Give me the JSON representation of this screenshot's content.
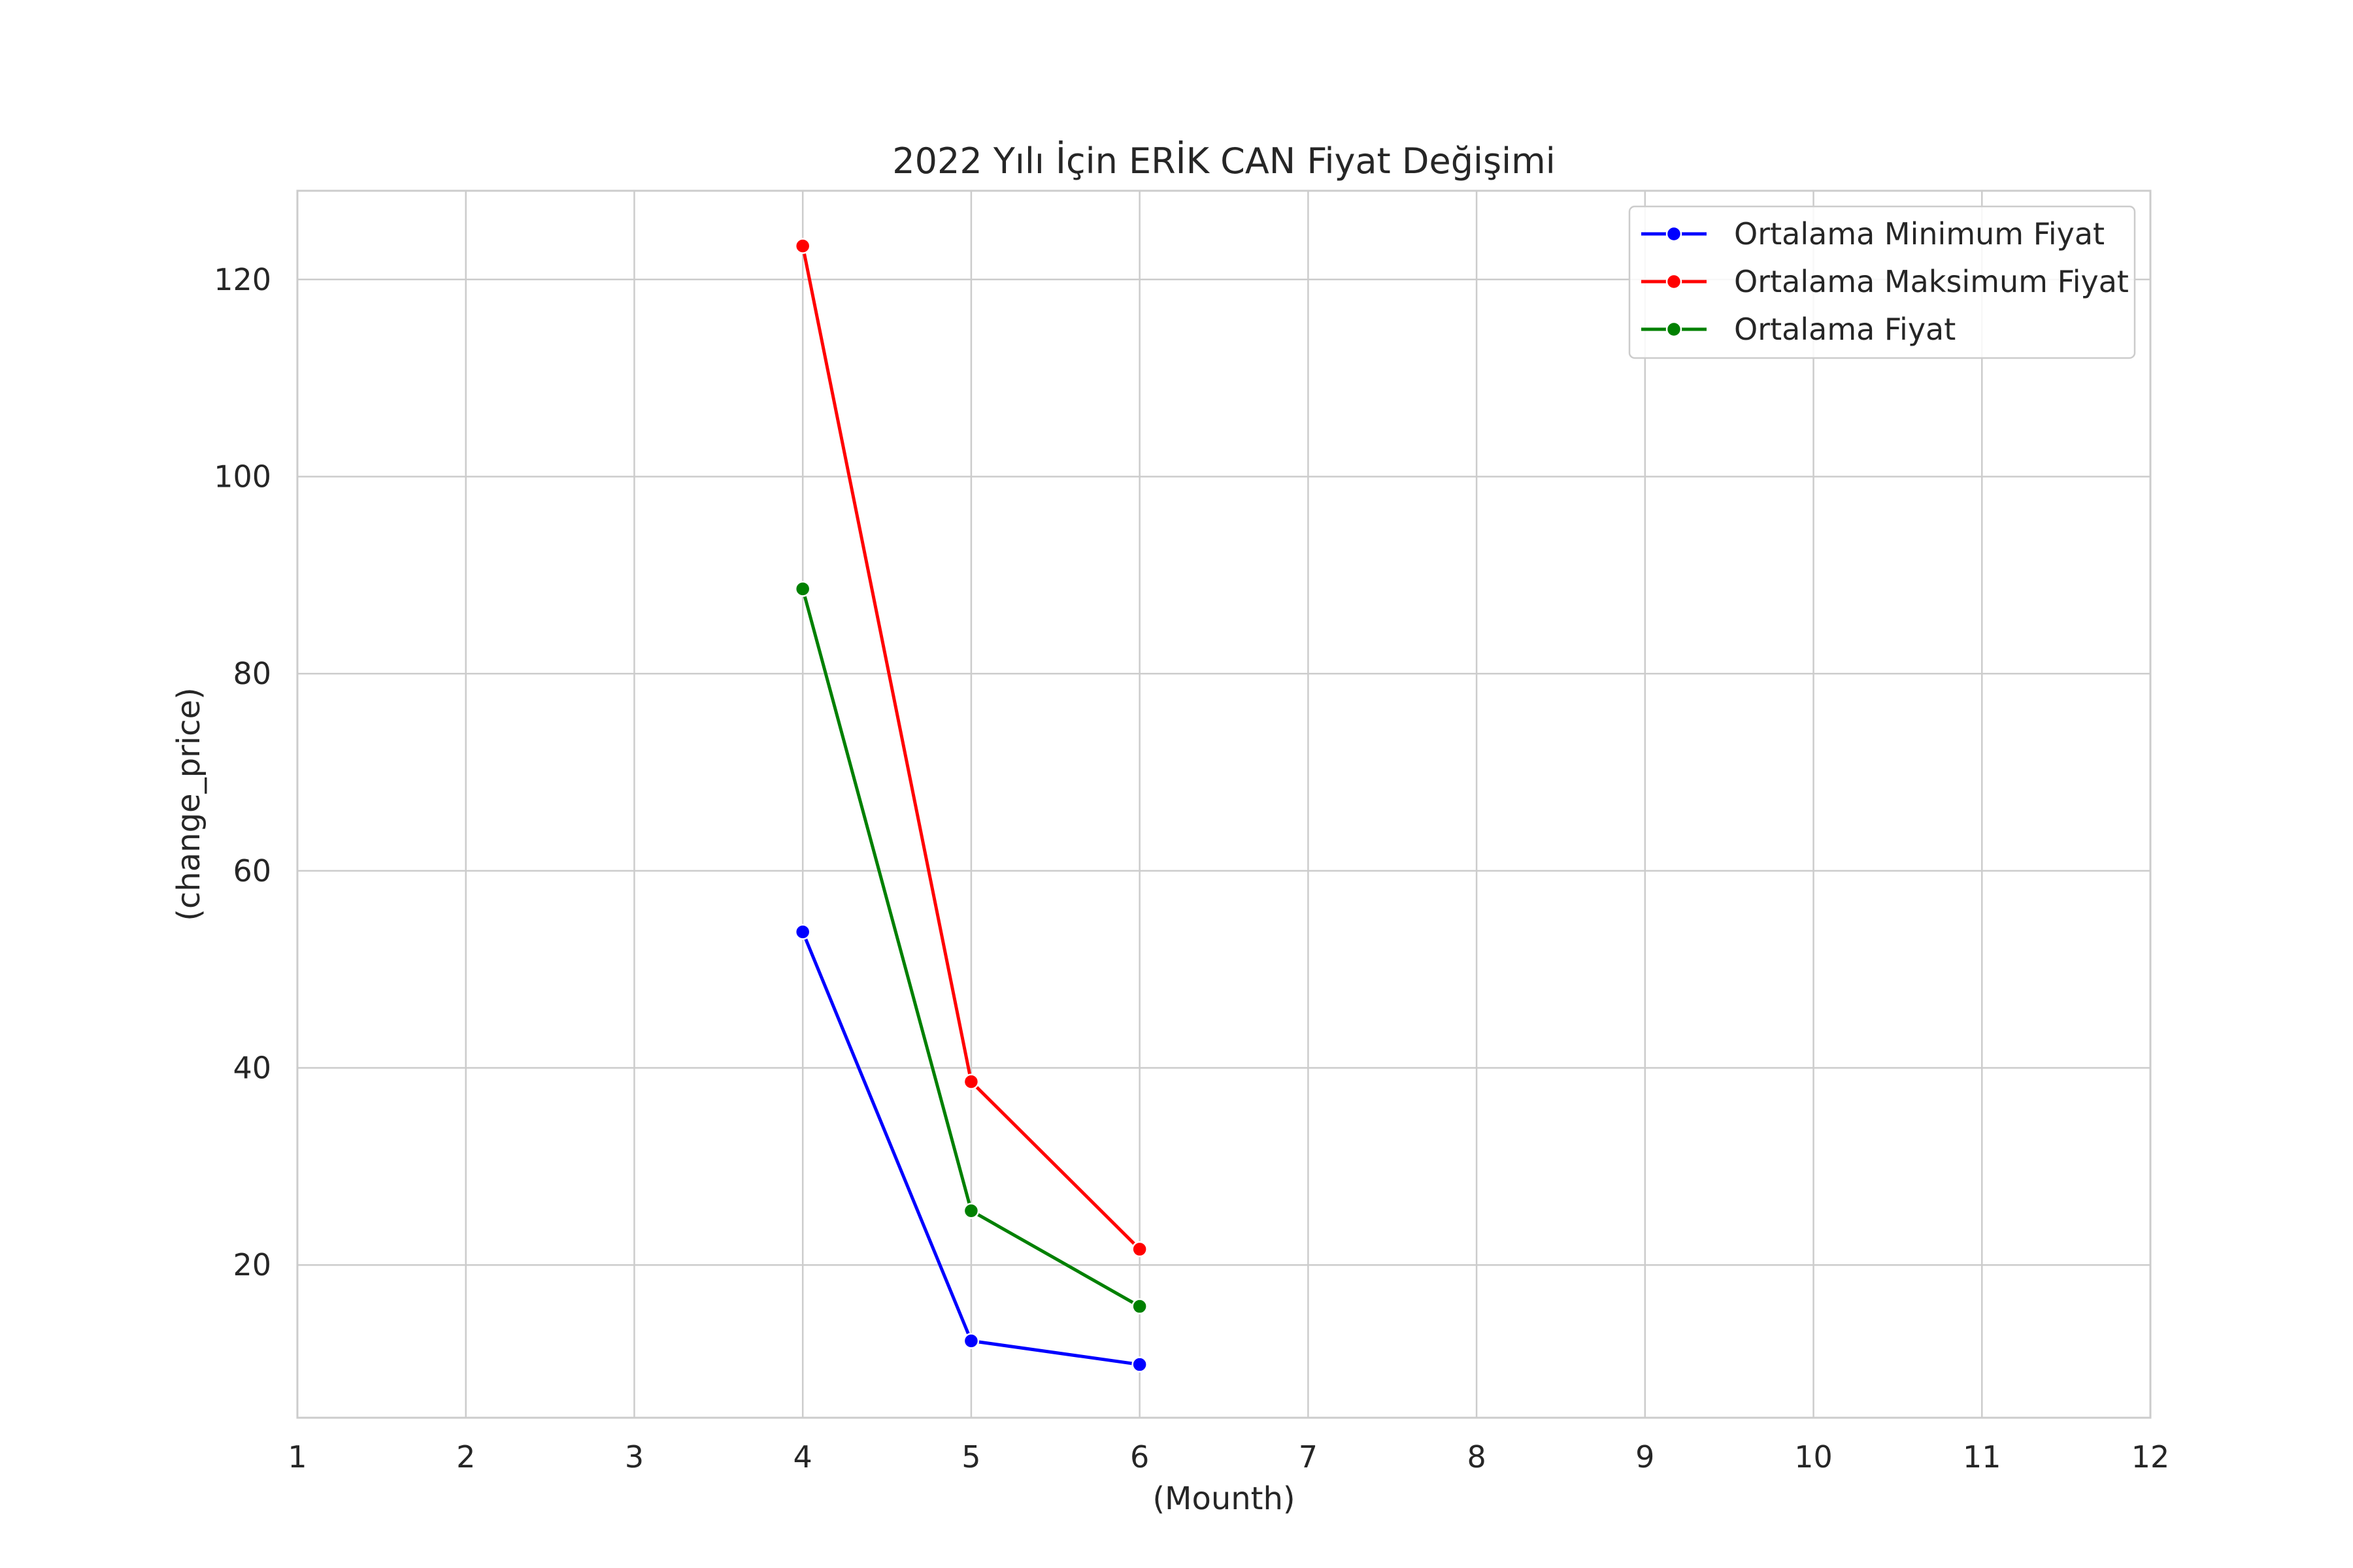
{
  "chart_data": {
    "type": "line",
    "title": "2022 Yılı İçin ERİK CAN Fiyat Değişimi",
    "xlabel": "(Mounth)",
    "ylabel": "(change_price)",
    "x": [
      4,
      5,
      6
    ],
    "xlim": [
      1,
      12
    ],
    "ylim": [
      4.5,
      129
    ],
    "xticks": [
      1,
      2,
      3,
      4,
      5,
      6,
      7,
      8,
      9,
      10,
      11,
      12
    ],
    "yticks": [
      20,
      40,
      60,
      80,
      100,
      120
    ],
    "grid": true,
    "legend_position": "top-right",
    "series": [
      {
        "name": "Ortalama Minimum Fiyat",
        "color": "#0000ff",
        "values": [
          53.8,
          12.3,
          9.9
        ]
      },
      {
        "name": "Ortalama Maksimum Fiyat",
        "color": "#ff0000",
        "values": [
          123.4,
          38.6,
          21.6
        ]
      },
      {
        "name": "Ortalama Fiyat",
        "color": "#008000",
        "values": [
          88.6,
          25.5,
          15.8
        ]
      }
    ]
  }
}
